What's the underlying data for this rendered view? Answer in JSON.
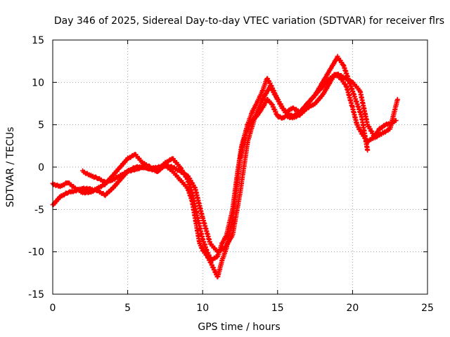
{
  "chart_data": {
    "type": "scatter",
    "title": "Day 346 of 2025, Sidereal Day-to-day VTEC variation (SDTVAR) for receiver flrs",
    "xlabel": "GPS time / hours",
    "ylabel": "SDTVAR / TECUs",
    "xlim": [
      0,
      25
    ],
    "ylim": [
      -15,
      15
    ],
    "xticks": [
      0,
      5,
      10,
      15,
      20,
      25
    ],
    "yticks": [
      -15,
      -10,
      -5,
      0,
      5,
      10,
      15
    ],
    "xtick_labels": [
      "0",
      "5",
      "10",
      "15",
      "20",
      "25"
    ],
    "ytick_labels": [
      "-15",
      "-10",
      "-5",
      "0",
      "5",
      "10",
      "15"
    ],
    "grid": true,
    "marker": "plus",
    "series_color": "#ff0000",
    "series": [
      {
        "x": [
          0,
          0.5,
          1,
          1.5,
          2,
          2.5,
          3,
          3.5,
          4,
          4.5,
          5,
          5.5,
          6,
          6.5,
          7,
          7.5,
          8,
          8.5,
          9,
          9.3,
          9.6,
          9.8,
          10,
          10.3,
          10.6,
          11,
          11.3,
          11.6,
          12,
          12.3,
          12.5,
          12.8,
          13,
          13.3,
          13.6,
          14,
          14.3,
          14.6,
          15,
          15.3,
          15.6,
          16,
          16.5,
          17,
          17.5,
          18,
          18.5,
          18.8,
          19.2,
          19.6,
          20,
          20.3,
          20.6,
          21,
          21.4,
          21.8,
          22.2,
          22.6,
          22.9
        ],
        "y": [
          -4.5,
          -3.5,
          -3,
          -2.8,
          -2.5,
          -2.6,
          -2.8,
          -3.3,
          -2.5,
          -1.5,
          -0.5,
          -0.3,
          0,
          -0.2,
          0,
          0.2,
          -0.5,
          -1.5,
          -2.5,
          -4,
          -7,
          -9,
          -9.8,
          -10.5,
          -11.5,
          -13,
          -11,
          -9.5,
          -6,
          -2,
          1,
          3.5,
          4.5,
          5.5,
          6,
          7,
          8,
          7.5,
          6,
          5.8,
          6,
          5.8,
          6.2,
          7,
          7.5,
          8.5,
          10,
          11,
          10.5,
          9.5,
          7,
          5,
          4,
          3,
          3.5,
          4.5,
          5,
          5.2,
          5.5
        ]
      },
      {
        "x": [
          0,
          0.5,
          1,
          1.5,
          2,
          2.5,
          3,
          3.5,
          4,
          4.5,
          5,
          5.5,
          6,
          6.5,
          7,
          7.5,
          8,
          8.5,
          9,
          9.3,
          9.6,
          10,
          10.3,
          10.6,
          11,
          11.3,
          11.6,
          12,
          12.3,
          12.6,
          13,
          13.3,
          13.6,
          14,
          14.3,
          14.6,
          15,
          15.3,
          15.6,
          16,
          16.5,
          17,
          17.5,
          18,
          18.5,
          19,
          19.4,
          19.8,
          20.2,
          20.6,
          21
        ],
        "y": [
          -2,
          -2.3,
          -1.8,
          -2.5,
          -3,
          -3,
          -2.5,
          -2,
          -1,
          0,
          1,
          1.5,
          0.5,
          0,
          -0.5,
          0.5,
          1,
          0,
          -1.5,
          -3,
          -5.5,
          -8.5,
          -10,
          -11,
          -10.5,
          -9,
          -8,
          -5,
          -1,
          2.5,
          5,
          6.5,
          7.5,
          9,
          10.5,
          9.5,
          8,
          7,
          6.5,
          7,
          6.5,
          7.5,
          8.5,
          10,
          11.5,
          13,
          12,
          10,
          8,
          6,
          2
        ]
      },
      {
        "x": [
          2,
          2.5,
          3,
          3.5,
          4,
          4.5,
          5,
          5.5,
          6,
          6.5,
          7,
          7.5,
          8,
          8.5,
          9,
          9.5,
          10,
          10.5,
          11,
          11.5,
          12,
          12.5,
          13,
          13.5,
          14,
          14.5,
          15,
          15.5,
          16,
          16.5,
          17,
          17.5,
          18,
          18.5,
          19,
          19.5,
          20,
          20.5,
          21,
          21.5,
          22,
          22.5,
          23
        ],
        "y": [
          -0.5,
          -1,
          -1.3,
          -1.8,
          -1.5,
          -1,
          -0.5,
          0,
          0,
          -0.2,
          -0.5,
          0.2,
          0,
          -0.5,
          -1,
          -2.5,
          -6,
          -9,
          -10,
          -9.5,
          -8,
          -3,
          3,
          6,
          8,
          9.5,
          8,
          6.5,
          6,
          6.5,
          7.5,
          8.5,
          9.5,
          10.5,
          11,
          10.5,
          10,
          9,
          5,
          3.5,
          4,
          4.5,
          8
        ]
      }
    ]
  }
}
